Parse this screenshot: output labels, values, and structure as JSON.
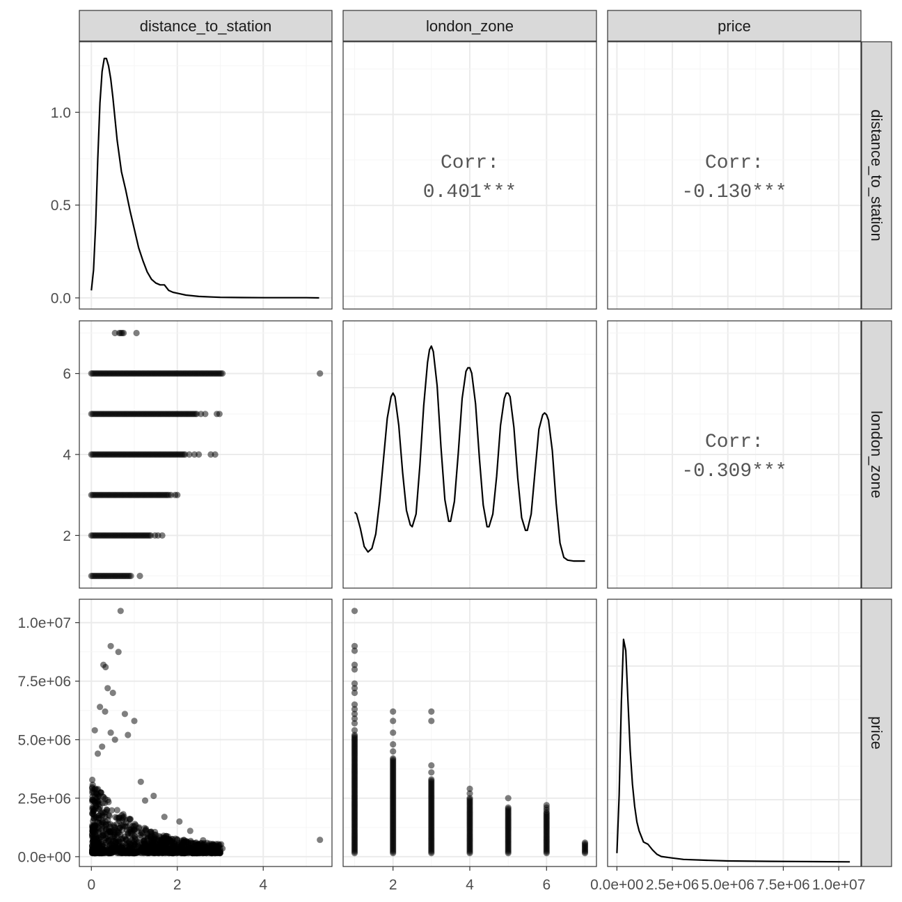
{
  "chart_data": {
    "type": "scatter-matrix",
    "variables": [
      "distance_to_station",
      "london_zone",
      "price"
    ],
    "strip_labels": {
      "top": [
        "distance_to_station",
        "london_zone",
        "price"
      ],
      "right": [
        "distance_to_station",
        "london_zone",
        "price"
      ]
    },
    "axes": {
      "distance_to_station": {
        "range": [
          -0.28,
          5.6
        ],
        "ticks": [
          0,
          2,
          4
        ],
        "tick_labels": [
          "0",
          "2",
          "4"
        ]
      },
      "london_zone": {
        "range": [
          0.7,
          7.3
        ],
        "ticks": [
          2,
          4,
          6
        ],
        "tick_labels": [
          "2",
          "4",
          "6"
        ]
      },
      "price": {
        "range": [
          -420000,
          11000000
        ],
        "ticks": [
          0,
          2500000,
          5000000,
          7500000,
          10000000
        ],
        "tick_labels": [
          "0.0e+00",
          "2.5e+06",
          "5.0e+06",
          "7.5e+06",
          "1.0e+07"
        ]
      },
      "density_distance": {
        "range": [
          -0.06,
          1.38
        ],
        "ticks": [
          0.0,
          0.5,
          1.0
        ],
        "tick_labels": [
          "0.0",
          "0.5",
          "1.0"
        ]
      }
    },
    "correlations": [
      {
        "row": 0,
        "col": 1,
        "label": "Corr:",
        "value": "0.401***"
      },
      {
        "row": 0,
        "col": 2,
        "label": "Corr:",
        "value": "-0.130***"
      },
      {
        "row": 1,
        "col": 2,
        "label": "Corr:",
        "value": "-0.309***"
      }
    ],
    "densities": {
      "distance_to_station": {
        "x": [
          0.0,
          0.05,
          0.1,
          0.15,
          0.2,
          0.25,
          0.3,
          0.35,
          0.4,
          0.45,
          0.5,
          0.6,
          0.7,
          0.8,
          0.9,
          1.0,
          1.1,
          1.2,
          1.3,
          1.4,
          1.5,
          1.6,
          1.7,
          1.8,
          1.9,
          2.0,
          2.2,
          2.5,
          2.8,
          3.0,
          3.5,
          4.0,
          4.5,
          5.0,
          5.3
        ],
        "y": [
          0.04,
          0.15,
          0.4,
          0.75,
          1.05,
          1.22,
          1.29,
          1.29,
          1.25,
          1.18,
          1.08,
          0.85,
          0.68,
          0.58,
          0.47,
          0.37,
          0.27,
          0.2,
          0.14,
          0.1,
          0.08,
          0.07,
          0.07,
          0.04,
          0.03,
          0.025,
          0.015,
          0.008,
          0.005,
          0.003,
          0.002,
          0.001,
          0.001,
          0.001,
          0.0
        ]
      },
      "london_zone": {
        "x": [
          1.0,
          1.05,
          1.15,
          1.25,
          1.35,
          1.45,
          1.55,
          1.65,
          1.75,
          1.85,
          1.95,
          2.0,
          2.05,
          2.15,
          2.25,
          2.35,
          2.45,
          2.5,
          2.6,
          2.7,
          2.8,
          2.9,
          2.95,
          3.0,
          3.05,
          3.15,
          3.25,
          3.35,
          3.45,
          3.5,
          3.6,
          3.7,
          3.8,
          3.9,
          3.95,
          4.0,
          4.05,
          4.15,
          4.25,
          4.35,
          4.45,
          4.5,
          4.6,
          4.7,
          4.8,
          4.9,
          4.95,
          5.0,
          5.05,
          5.15,
          5.25,
          5.35,
          5.45,
          5.5,
          5.6,
          5.7,
          5.8,
          5.9,
          5.95,
          6.0,
          6.05,
          6.15,
          6.25,
          6.35,
          6.45,
          6.55,
          6.7,
          6.85,
          7.0
        ],
        "y": [
          0.27,
          0.26,
          0.18,
          0.08,
          0.05,
          0.07,
          0.15,
          0.33,
          0.56,
          0.79,
          0.91,
          0.93,
          0.91,
          0.75,
          0.49,
          0.28,
          0.2,
          0.19,
          0.26,
          0.53,
          0.86,
          1.1,
          1.17,
          1.19,
          1.16,
          0.97,
          0.63,
          0.34,
          0.22,
          0.22,
          0.33,
          0.6,
          0.9,
          1.05,
          1.07,
          1.07,
          1.04,
          0.87,
          0.57,
          0.31,
          0.19,
          0.19,
          0.26,
          0.47,
          0.75,
          0.9,
          0.93,
          0.93,
          0.91,
          0.74,
          0.46,
          0.24,
          0.17,
          0.17,
          0.26,
          0.5,
          0.73,
          0.81,
          0.82,
          0.81,
          0.78,
          0.61,
          0.32,
          0.1,
          0.02,
          0.005,
          0.0,
          0.0,
          0.0
        ]
      },
      "price": {
        "x": [
          0,
          100000,
          200000,
          300000,
          400000,
          500000,
          600000,
          700000,
          800000,
          900000,
          1000000,
          1200000,
          1400000,
          1600000,
          1800000,
          2000000,
          2500000,
          3000000,
          4000000,
          5000000,
          7000000,
          9000000,
          10500000
        ],
        "y": [
          0.04,
          0.3,
          0.72,
          1.0,
          0.95,
          0.72,
          0.5,
          0.35,
          0.25,
          0.18,
          0.14,
          0.09,
          0.08,
          0.055,
          0.035,
          0.025,
          0.018,
          0.012,
          0.008,
          0.005,
          0.003,
          0.002,
          0.001
        ]
      }
    },
    "scatter": {
      "point_color": "#000000",
      "point_alpha": 0.5,
      "zone_vs_distance": [
        {
          "zone": 1,
          "from": 0.0,
          "to": 0.92,
          "outliers": [
            1.13
          ]
        },
        {
          "zone": 2,
          "from": 0.0,
          "to": 1.38,
          "outliers": [
            1.48,
            1.55,
            1.65
          ]
        },
        {
          "zone": 3,
          "from": 0.0,
          "to": 1.8,
          "outliers": [
            1.85,
            1.95,
            2.0
          ]
        },
        {
          "zone": 4,
          "from": 0.0,
          "to": 2.18,
          "outliers": [
            2.28,
            2.4,
            2.5,
            2.78,
            2.88
          ]
        },
        {
          "zone": 5,
          "from": 0.0,
          "to": 2.45,
          "outliers": [
            2.55,
            2.65,
            2.92,
            2.98
          ]
        },
        {
          "zone": 6,
          "from": 0.0,
          "to": 3.05,
          "outliers": [
            5.32
          ]
        },
        {
          "zone": 7,
          "from": 0.65,
          "to": 0.75,
          "outliers": [
            0.55,
            1.05
          ]
        }
      ],
      "price_vs_zone": [
        {
          "zone": 1,
          "max": 5200000,
          "outliers": [
            5400000,
            5700000,
            5900000,
            6100000,
            6300000,
            6500000,
            7000000,
            7200000,
            7400000,
            8000000,
            8200000,
            8800000,
            9000000,
            10500000
          ]
        },
        {
          "zone": 2,
          "max": 4200000,
          "outliers": [
            4500000,
            4800000,
            5300000,
            5800000,
            6200000
          ]
        },
        {
          "zone": 3,
          "max": 3300000,
          "outliers": [
            3600000,
            3900000,
            5800000,
            6200000
          ]
        },
        {
          "zone": 4,
          "max": 2500000,
          "outliers": [
            2700000,
            2900000
          ]
        },
        {
          "zone": 5,
          "max": 2100000,
          "outliers": [
            2500000
          ]
        },
        {
          "zone": 6,
          "max": 1900000,
          "outliers": [
            2000000,
            2100000,
            2200000
          ]
        },
        {
          "zone": 7,
          "max": 600000,
          "outliers": []
        }
      ],
      "price_vs_distance_outliers": [
        {
          "x": 0.68,
          "y": 10500000
        },
        {
          "x": 0.45,
          "y": 9000000
        },
        {
          "x": 0.63,
          "y": 8750000
        },
        {
          "x": 0.28,
          "y": 8200000
        },
        {
          "x": 0.33,
          "y": 8100000
        },
        {
          "x": 0.38,
          "y": 7200000
        },
        {
          "x": 0.5,
          "y": 7000000
        },
        {
          "x": 0.2,
          "y": 6400000
        },
        {
          "x": 0.32,
          "y": 6200000
        },
        {
          "x": 0.78,
          "y": 6100000
        },
        {
          "x": 1.0,
          "y": 5800000
        },
        {
          "x": 0.08,
          "y": 5400000
        },
        {
          "x": 0.45,
          "y": 5300000
        },
        {
          "x": 0.85,
          "y": 5200000
        },
        {
          "x": 0.55,
          "y": 5000000
        },
        {
          "x": 0.25,
          "y": 4700000
        },
        {
          "x": 0.15,
          "y": 4400000
        },
        {
          "x": 1.15,
          "y": 3200000
        },
        {
          "x": 1.45,
          "y": 2600000
        },
        {
          "x": 1.25,
          "y": 2400000
        },
        {
          "x": 2.05,
          "y": 1500000
        },
        {
          "x": 1.7,
          "y": 1700000
        },
        {
          "x": 2.3,
          "y": 1100000
        },
        {
          "x": 2.6,
          "y": 700000
        },
        {
          "x": 2.85,
          "y": 500000
        },
        {
          "x": 3.05,
          "y": 350000
        },
        {
          "x": 5.32,
          "y": 720000
        }
      ]
    },
    "colors": {
      "panel_border": "#333333",
      "strip_fill": "#d9d9d9",
      "grid_major": "#ebebeb",
      "grid_minor": "#f5f5f5",
      "text": "#4d4d4d",
      "corr_text": "#555555"
    },
    "grid": true,
    "legend": "none"
  }
}
